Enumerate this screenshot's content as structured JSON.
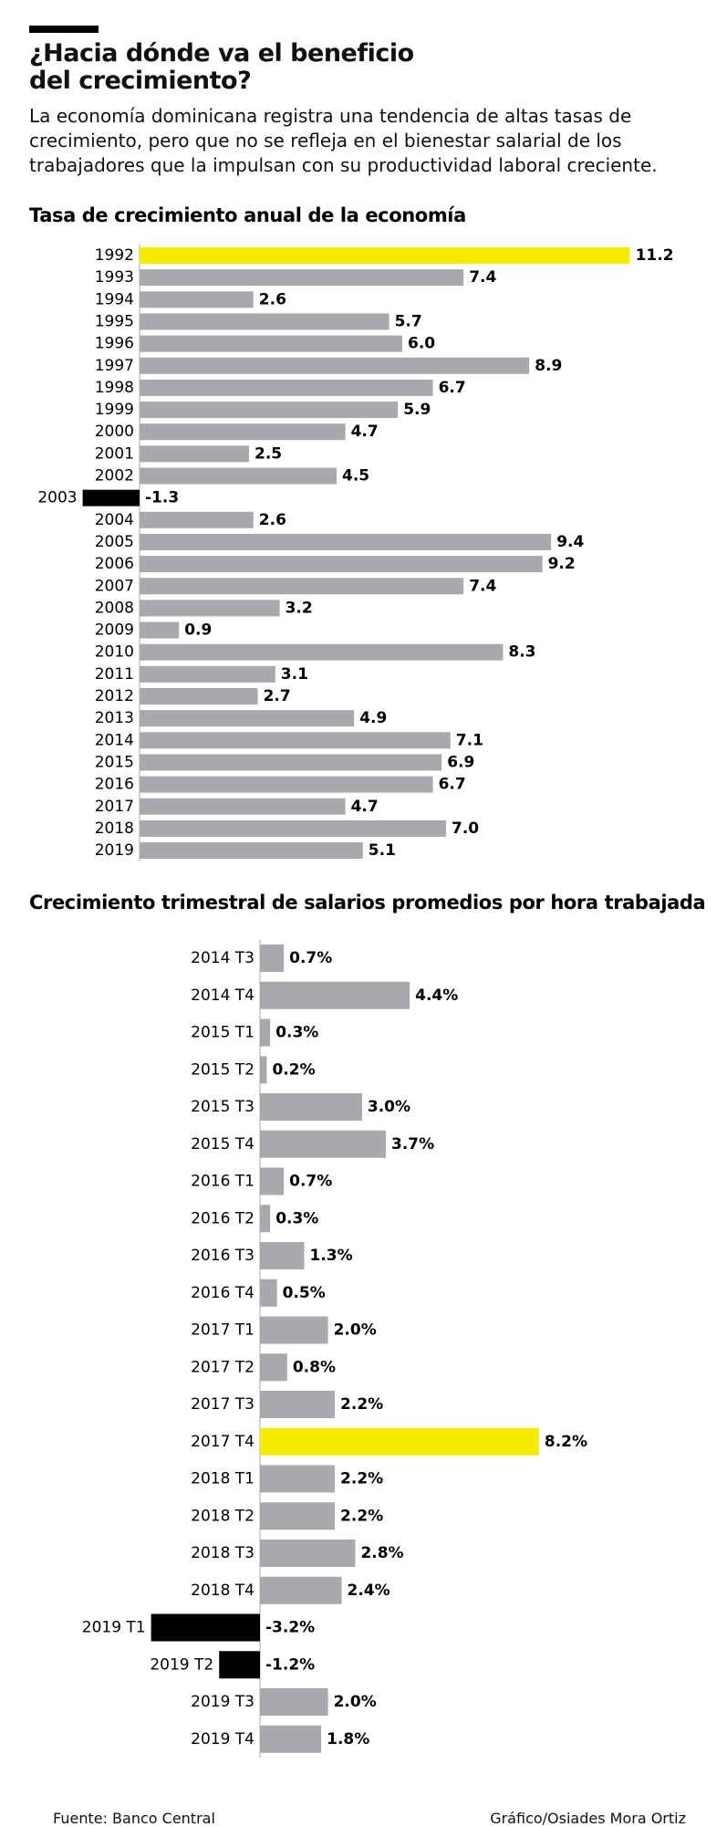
{
  "header": {
    "title": "¿Hacia dónde va el beneficio del crecimiento?",
    "subtitle": "La economía dominicana registra una tendencia de altas tasas de crecimiento, pero que no se refleja en el bienestar salarial de los trabajadores que la impulsan con su productividad laboral creciente."
  },
  "chart_data": [
    {
      "type": "bar",
      "orientation": "horizontal",
      "title": "Tasa de crecimiento anual de la economía",
      "categories": [
        "1992",
        "1993",
        "1994",
        "1995",
        "1996",
        "1997",
        "1998",
        "1999",
        "2000",
        "2001",
        "2002",
        "2003",
        "2004",
        "2005",
        "2006",
        "2007",
        "2008",
        "2009",
        "2010",
        "2011",
        "2012",
        "2013",
        "2014",
        "2015",
        "2016",
        "2017",
        "2018",
        "2019"
      ],
      "values": [
        11.2,
        7.4,
        2.6,
        5.7,
        6.0,
        8.9,
        6.7,
        5.9,
        4.7,
        2.5,
        4.5,
        -1.3,
        2.6,
        9.4,
        9.2,
        7.4,
        3.2,
        0.9,
        8.3,
        3.1,
        2.7,
        4.9,
        7.1,
        6.9,
        6.7,
        4.7,
        7.0,
        5.1
      ],
      "value_labels": [
        "11.2",
        "7.4",
        "2.6",
        "5.7",
        "6.0",
        "8.9",
        "6.7",
        "5.9",
        "4.7",
        "2.5",
        "4.5",
        "-1.3",
        "2.6",
        "9.4",
        "9.2",
        "7.4",
        "3.2",
        "0.9",
        "8.3",
        "3.1",
        "2.7",
        "4.9",
        "7.1",
        "6.9",
        "6.7",
        "4.7",
        "7.0",
        "5.1"
      ],
      "colors": [
        "#f5eb00",
        "#a7a9ac",
        "#a7a9ac",
        "#a7a9ac",
        "#a7a9ac",
        "#a7a9ac",
        "#a7a9ac",
        "#a7a9ac",
        "#a7a9ac",
        "#a7a9ac",
        "#a7a9ac",
        "#000000",
        "#a7a9ac",
        "#a7a9ac",
        "#a7a9ac",
        "#a7a9ac",
        "#a7a9ac",
        "#a7a9ac",
        "#a7a9ac",
        "#a7a9ac",
        "#a7a9ac",
        "#a7a9ac",
        "#a7a9ac",
        "#a7a9ac",
        "#a7a9ac",
        "#a7a9ac",
        "#a7a9ac",
        "#a7a9ac"
      ]
    },
    {
      "type": "bar",
      "orientation": "horizontal",
      "title": "Crecimiento trimestral de salarios promedios por hora trabajada",
      "categories": [
        "2014 T3",
        "2014 T4",
        "2015 T1",
        "2015 T2",
        "2015 T3",
        "2015 T4",
        "2016 T1",
        "2016 T2",
        "2016 T3",
        "2016 T4",
        "2017 T1",
        "2017 T2",
        "2017 T3",
        "2017 T4",
        "2018 T1",
        "2018 T2",
        "2018 T3",
        "2018 T4",
        "2019 T1",
        "2019 T2",
        "2019 T3",
        "2019 T4"
      ],
      "values": [
        0.7,
        4.4,
        0.3,
        0.2,
        3.0,
        3.7,
        0.7,
        0.3,
        1.3,
        0.5,
        2.0,
        0.8,
        2.2,
        8.2,
        2.2,
        2.2,
        2.8,
        2.4,
        -3.2,
        -1.2,
        2.0,
        1.8
      ],
      "value_labels": [
        "0.7%",
        "4.4%",
        "0.3%",
        "0.2%",
        "3.0%",
        "3.7%",
        "0.7%",
        "0.3%",
        "1.3%",
        "0.5%",
        "2.0%",
        "0.8%",
        "2.2%",
        "8.2%",
        "2.2%",
        "2.2%",
        "2.8%",
        "2.4%",
        "-3.2%",
        "-1.2%",
        "2.0%",
        "1.8%"
      ],
      "colors": [
        "#a7a9ac",
        "#a7a9ac",
        "#a7a9ac",
        "#a7a9ac",
        "#a7a9ac",
        "#a7a9ac",
        "#a7a9ac",
        "#a7a9ac",
        "#a7a9ac",
        "#a7a9ac",
        "#a7a9ac",
        "#a7a9ac",
        "#a7a9ac",
        "#f5eb00",
        "#a7a9ac",
        "#a7a9ac",
        "#a7a9ac",
        "#a7a9ac",
        "#000000",
        "#000000",
        "#a7a9ac",
        "#a7a9ac"
      ]
    }
  ],
  "footer": {
    "source": "Fuente: Banco Central",
    "credit": "Gráfico/Osiades Mora Ortiz"
  }
}
